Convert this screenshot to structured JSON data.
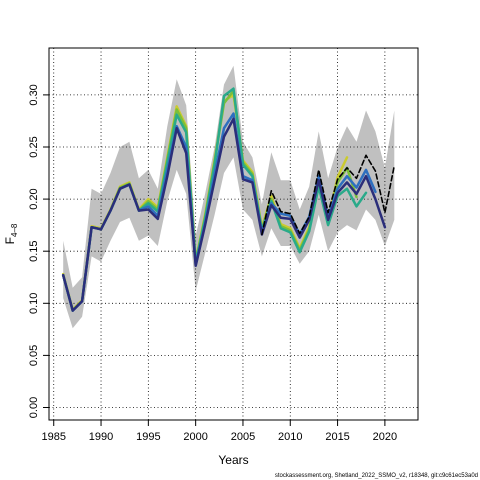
{
  "chart_data": {
    "type": "line",
    "xlabel": "Years",
    "ylabel_main": "F",
    "ylabel_sub": "4–8",
    "footer": "stockassessment.org, Shetland_2022_SSMO_v2, r18348, git:c9c61ec53a0d",
    "xlim": [
      1984.5,
      2023.5
    ],
    "ylim": [
      -0.012,
      0.345
    ],
    "xticks": [
      1985,
      1990,
      1995,
      2000,
      2005,
      2010,
      2015,
      2020
    ],
    "yticks": [
      0.0,
      0.05,
      0.1,
      0.15,
      0.2,
      0.25,
      0.3
    ],
    "ytick_labels": [
      "0.00",
      "0.05",
      "0.10",
      "0.15",
      "0.20",
      "0.25",
      "0.30"
    ],
    "grid": true,
    "band": {
      "x": [
        1986,
        1987,
        1988,
        1989,
        1990,
        1991,
        1992,
        1993,
        1994,
        1995,
        1996,
        1997,
        1998,
        1999,
        2000,
        2001,
        2002,
        2003,
        2004,
        2005,
        2006,
        2007,
        2008,
        2009,
        2010,
        2011,
        2012,
        2013,
        2014,
        2015,
        2016,
        2017,
        2018,
        2019,
        2020,
        2021
      ],
      "upper": [
        0.16,
        0.115,
        0.125,
        0.21,
        0.205,
        0.225,
        0.25,
        0.255,
        0.22,
        0.228,
        0.21,
        0.27,
        0.315,
        0.29,
        0.165,
        0.205,
        0.25,
        0.31,
        0.328,
        0.255,
        0.24,
        0.195,
        0.245,
        0.218,
        0.218,
        0.19,
        0.212,
        0.265,
        0.22,
        0.25,
        0.27,
        0.255,
        0.285,
        0.265,
        0.23,
        0.285
      ],
      "lower": [
        0.105,
        0.076,
        0.087,
        0.145,
        0.14,
        0.16,
        0.178,
        0.182,
        0.16,
        0.165,
        0.155,
        0.198,
        0.228,
        0.205,
        0.112,
        0.148,
        0.185,
        0.225,
        0.24,
        0.19,
        0.18,
        0.145,
        0.172,
        0.155,
        0.155,
        0.138,
        0.15,
        0.185,
        0.15,
        0.168,
        0.175,
        0.17,
        0.19,
        0.18,
        0.155,
        0.18
      ]
    },
    "series": [
      {
        "color": "#CBCB2E",
        "width": 2.5,
        "dash": false,
        "x": [
          1986,
          1987,
          1988,
          1989,
          1990,
          1991,
          1992,
          1993,
          1994,
          1995,
          1996,
          1997,
          1998,
          1999,
          2000,
          2001,
          2002,
          2003,
          2004,
          2005,
          2006,
          2007,
          2008,
          2009,
          2010,
          2011,
          2012,
          2013,
          2014,
          2015,
          2016
        ],
        "values": [
          0.128,
          0.094,
          0.103,
          0.174,
          0.172,
          0.19,
          0.212,
          0.216,
          0.19,
          0.2,
          0.192,
          0.24,
          0.289,
          0.27,
          0.141,
          0.185,
          0.238,
          0.294,
          0.3,
          0.237,
          0.226,
          0.173,
          0.203,
          0.176,
          0.172,
          0.153,
          0.173,
          0.218,
          0.18,
          0.221,
          0.24
        ]
      },
      {
        "color": "#7BBF3A",
        "width": 2.5,
        "dash": false,
        "x": [
          1986,
          1987,
          1988,
          1989,
          1990,
          1991,
          1992,
          1993,
          1994,
          1995,
          1996,
          1997,
          1998,
          1999,
          2000,
          2001,
          2002,
          2003,
          2004,
          2005,
          2006,
          2007,
          2008,
          2009,
          2010,
          2011,
          2012,
          2013,
          2014,
          2015,
          2016,
          2017
        ],
        "values": [
          0.127,
          0.093,
          0.102,
          0.173,
          0.171,
          0.189,
          0.211,
          0.215,
          0.189,
          0.198,
          0.19,
          0.238,
          0.286,
          0.268,
          0.14,
          0.183,
          0.236,
          0.292,
          0.304,
          0.235,
          0.224,
          0.171,
          0.2,
          0.174,
          0.17,
          0.151,
          0.171,
          0.215,
          0.177,
          0.216,
          0.23,
          0.202
        ]
      },
      {
        "color": "#2AAA8A",
        "width": 2.5,
        "dash": false,
        "x": [
          1986,
          1987,
          1988,
          1989,
          1990,
          1991,
          1992,
          1993,
          1994,
          1995,
          1996,
          1997,
          1998,
          1999,
          2000,
          2001,
          2002,
          2003,
          2004,
          2005,
          2006,
          2007,
          2008,
          2009,
          2010,
          2011,
          2012,
          2013,
          2014,
          2015,
          2016,
          2017,
          2018
        ],
        "values": [
          0.127,
          0.093,
          0.102,
          0.173,
          0.171,
          0.189,
          0.21,
          0.214,
          0.189,
          0.196,
          0.188,
          0.235,
          0.281,
          0.264,
          0.139,
          0.181,
          0.233,
          0.299,
          0.306,
          0.233,
          0.222,
          0.17,
          0.198,
          0.172,
          0.168,
          0.149,
          0.169,
          0.212,
          0.175,
          0.203,
          0.21,
          0.193,
          0.206
        ]
      },
      {
        "color": "#2E6FBF",
        "width": 2.5,
        "dash": false,
        "x": [
          1986,
          1987,
          1988,
          1989,
          1990,
          1991,
          1992,
          1993,
          1994,
          1995,
          1996,
          1997,
          1998,
          1999,
          2000,
          2001,
          2002,
          2003,
          2004,
          2005,
          2006,
          2007,
          2008,
          2009,
          2010,
          2011,
          2012,
          2013,
          2014,
          2015,
          2016,
          2017,
          2018,
          2019
        ],
        "values": [
          0.127,
          0.093,
          0.102,
          0.173,
          0.171,
          0.189,
          0.21,
          0.214,
          0.189,
          0.193,
          0.184,
          0.228,
          0.27,
          0.25,
          0.137,
          0.177,
          0.224,
          0.268,
          0.282,
          0.222,
          0.218,
          0.168,
          0.196,
          0.186,
          0.184,
          0.166,
          0.183,
          0.222,
          0.183,
          0.21,
          0.222,
          0.211,
          0.228,
          0.207
        ]
      },
      {
        "color": "#2B2E7A",
        "width": 2.5,
        "dash": false,
        "x": [
          1986,
          1987,
          1988,
          1989,
          1990,
          1991,
          1992,
          1993,
          1994,
          1995,
          1996,
          1997,
          1998,
          1999,
          2000,
          2001,
          2002,
          2003,
          2004,
          2005,
          2006,
          2007,
          2008,
          2009,
          2010,
          2011,
          2012,
          2013,
          2014,
          2015,
          2016,
          2017,
          2018,
          2019,
          2020
        ],
        "values": [
          0.127,
          0.093,
          0.102,
          0.173,
          0.171,
          0.189,
          0.21,
          0.214,
          0.189,
          0.19,
          0.181,
          0.222,
          0.268,
          0.244,
          0.136,
          0.175,
          0.218,
          0.26,
          0.277,
          0.219,
          0.216,
          0.166,
          0.194,
          0.182,
          0.181,
          0.163,
          0.18,
          0.218,
          0.18,
          0.206,
          0.216,
          0.205,
          0.222,
          0.2,
          0.173
        ]
      },
      {
        "color": "#000000",
        "width": 1.6,
        "dash": true,
        "x": [
          2007,
          2008,
          2009,
          2010,
          2011,
          2012,
          2013,
          2014,
          2015,
          2016,
          2017,
          2018,
          2019,
          2020,
          2021
        ],
        "values": [
          0.166,
          0.208,
          0.188,
          0.186,
          0.167,
          0.183,
          0.228,
          0.187,
          0.219,
          0.23,
          0.22,
          0.242,
          0.227,
          0.187,
          0.232
        ]
      }
    ]
  }
}
